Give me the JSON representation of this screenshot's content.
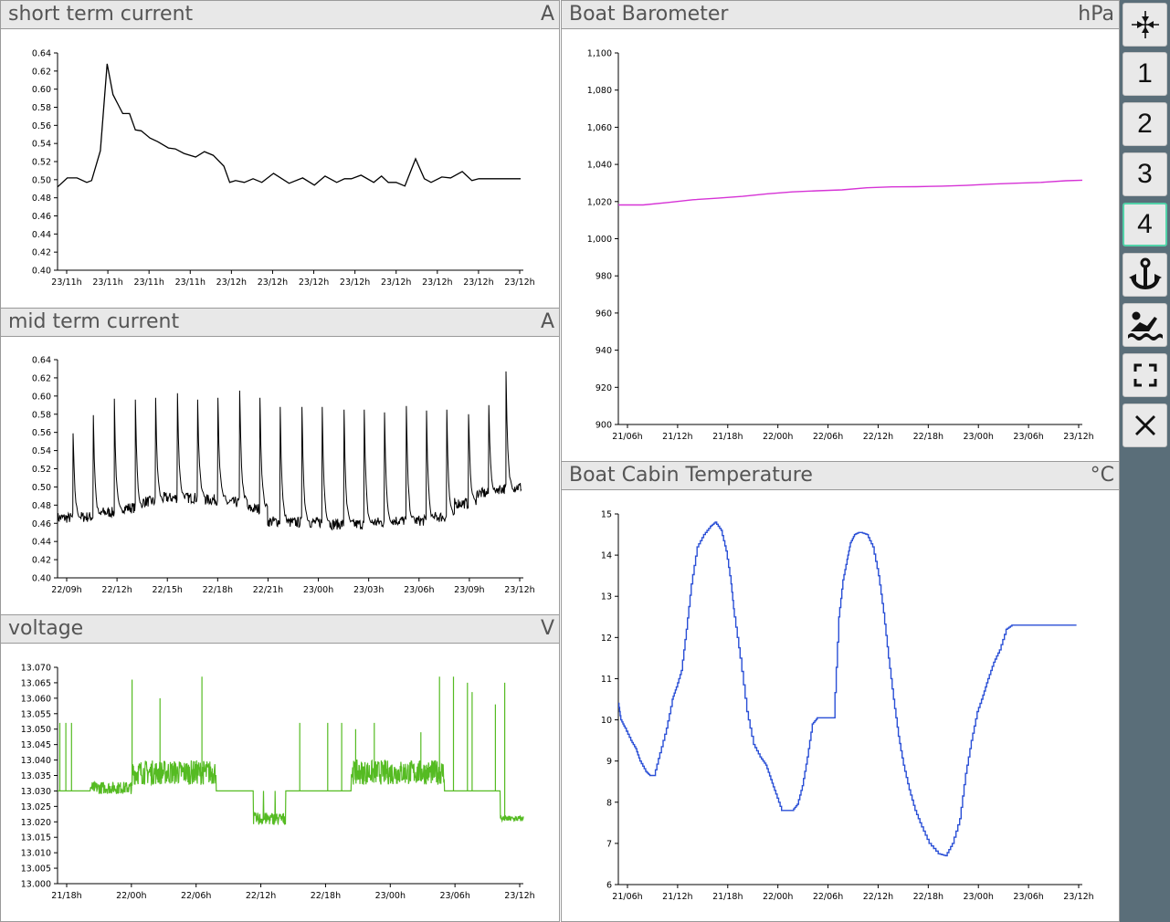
{
  "panels": {
    "short": {
      "title": "short term current",
      "unit": "A"
    },
    "mid": {
      "title": "mid term current",
      "unit": "A"
    },
    "voltage": {
      "title": "voltage",
      "unit": "V"
    },
    "baro": {
      "title": "Boat Barometer",
      "unit": "hPa"
    },
    "temp": {
      "title": "Boat Cabin Temperature",
      "unit": "°C"
    }
  },
  "sidebar": {
    "buttons": [
      "1",
      "2",
      "3",
      "4"
    ],
    "active_button": "4",
    "icons": [
      "compress-icon",
      "anchor-icon",
      "swimmer-icon",
      "fullscreen-icon",
      "close-icon"
    ]
  },
  "colors": {
    "short": "#000000",
    "mid": "#000000",
    "voltage": "#55bb22",
    "baro": "#d633d6",
    "temp": "#2a4fd6"
  },
  "chart_data": [
    {
      "id": "short",
      "type": "line",
      "yticks": [
        "0.64",
        "0.62",
        "0.60",
        "0.58",
        "0.56",
        "0.54",
        "0.52",
        "0.50",
        "0.48",
        "0.46",
        "0.44",
        "0.42",
        "0.40"
      ],
      "ylim": [
        0.4,
        0.64
      ],
      "xticks": [
        "23/11h",
        "23/11h",
        "23/11h",
        "23/11h",
        "23/12h",
        "23/12h",
        "23/12h",
        "23/12h",
        "23/12h",
        "23/12h",
        "23/12h",
        "23/12h"
      ],
      "x": [
        0,
        1.0,
        2.0,
        3.0,
        3.5,
        4.4,
        5.1,
        5.7,
        6.7,
        7.4,
        8.0,
        8.6,
        9.5,
        10.3,
        11.4,
        12.1,
        13.0,
        14.2,
        15.1,
        16.0,
        17.1,
        17.7,
        18.3,
        19.2,
        20.1,
        21.0,
        22.2,
        23.8,
        25.2,
        26.4,
        27.5,
        28.7,
        29.5,
        30.2,
        31.2,
        32.5,
        33.3,
        34.0,
        34.8,
        35.7,
        36.8,
        37.7,
        38.4,
        39.5,
        40.4,
        41.6,
        42.6,
        43.3,
        44.4,
        45.2,
        46.2,
        47.6
      ],
      "y": [
        0.492,
        0.502,
        0.502,
        0.497,
        0.499,
        0.532,
        0.628,
        0.594,
        0.573,
        0.573,
        0.555,
        0.554,
        0.546,
        0.542,
        0.535,
        0.534,
        0.529,
        0.525,
        0.531,
        0.527,
        0.515,
        0.497,
        0.499,
        0.497,
        0.501,
        0.497,
        0.507,
        0.496,
        0.502,
        0.494,
        0.504,
        0.497,
        0.501,
        0.501,
        0.505,
        0.497,
        0.504,
        0.497,
        0.497,
        0.493,
        0.523,
        0.501,
        0.497,
        0.503,
        0.502,
        0.509,
        0.499,
        0.501,
        0.501,
        0.501,
        0.501,
        0.501
      ]
    },
    {
      "id": "mid",
      "type": "line",
      "yticks": [
        "0.64",
        "0.62",
        "0.60",
        "0.58",
        "0.56",
        "0.54",
        "0.52",
        "0.50",
        "0.48",
        "0.46",
        "0.44",
        "0.42",
        "0.40"
      ],
      "ylim": [
        0.4,
        0.64
      ],
      "xticks": [
        "22/09h",
        "22/12h",
        "22/15h",
        "22/18h",
        "22/21h",
        "23/00h",
        "23/03h",
        "23/06h",
        "23/09h",
        "23/12h"
      ],
      "spikes": [
        {
          "t": 1.0,
          "peak": 0.559,
          "base": 0.466
        },
        {
          "t": 2.3,
          "peak": 0.579,
          "base": 0.467
        },
        {
          "t": 3.65,
          "peak": 0.597,
          "base": 0.472
        },
        {
          "t": 5.0,
          "peak": 0.596,
          "base": 0.477
        },
        {
          "t": 6.3,
          "peak": 0.598,
          "base": 0.484
        },
        {
          "t": 7.7,
          "peak": 0.603,
          "base": 0.488
        },
        {
          "t": 9.0,
          "peak": 0.596,
          "base": 0.488
        },
        {
          "t": 10.3,
          "peak": 0.598,
          "base": 0.486
        },
        {
          "t": 11.7,
          "peak": 0.606,
          "base": 0.483
        },
        {
          "t": 13.0,
          "peak": 0.598,
          "base": 0.476
        },
        {
          "t": 14.3,
          "peak": 0.588,
          "base": 0.462
        },
        {
          "t": 15.7,
          "peak": 0.588,
          "base": 0.461
        },
        {
          "t": 17.0,
          "peak": 0.588,
          "base": 0.461
        },
        {
          "t": 18.4,
          "peak": 0.585,
          "base": 0.459
        },
        {
          "t": 19.7,
          "peak": 0.585,
          "base": 0.459
        },
        {
          "t": 21.0,
          "peak": 0.582,
          "base": 0.461
        },
        {
          "t": 22.4,
          "peak": 0.589,
          "base": 0.463
        },
        {
          "t": 23.7,
          "peak": 0.584,
          "base": 0.463
        },
        {
          "t": 25.0,
          "peak": 0.585,
          "base": 0.467
        },
        {
          "t": 26.4,
          "peak": 0.58,
          "base": 0.482
        },
        {
          "t": 27.7,
          "peak": 0.59,
          "base": 0.493
        },
        {
          "t": 28.8,
          "peak": 0.627,
          "base": 0.498
        }
      ]
    },
    {
      "id": "voltage",
      "type": "line",
      "yticks": [
        "13.070",
        "13.065",
        "13.060",
        "13.055",
        "13.050",
        "13.045",
        "13.040",
        "13.035",
        "13.030",
        "13.025",
        "13.020",
        "13.015",
        "13.010",
        "13.005",
        "13.000"
      ],
      "ylim": [
        13.0,
        13.07
      ],
      "xticks": [
        "21/18h",
        "22/00h",
        "22/06h",
        "22/12h",
        "22/18h",
        "23/00h",
        "23/06h",
        "23/12h"
      ]
    },
    {
      "id": "baro",
      "type": "line",
      "yticks": [
        "1,100",
        "1,080",
        "1,060",
        "1,040",
        "1,020",
        "1,000",
        "980",
        "960",
        "940",
        "920",
        "900"
      ],
      "ylim": [
        900,
        1100
      ],
      "xticks": [
        "21/06h",
        "21/12h",
        "21/18h",
        "22/00h",
        "22/06h",
        "22/12h",
        "22/18h",
        "23/00h",
        "23/06h",
        "23/12h"
      ],
      "x": [
        0,
        3,
        6,
        9,
        12,
        15,
        18,
        21,
        24,
        27,
        30,
        33,
        36,
        39,
        42,
        45,
        48,
        51,
        54,
        56
      ],
      "y": [
        1018.2,
        1018.2,
        1019.5,
        1021,
        1021.8,
        1022.8,
        1024.2,
        1025.2,
        1025.8,
        1026.3,
        1027.4,
        1027.9,
        1028.0,
        1028.3,
        1028.7,
        1029.4,
        1029.9,
        1030.3,
        1031.2,
        1031.5
      ]
    },
    {
      "id": "temp",
      "type": "line",
      "yticks": [
        "15",
        "14",
        "13",
        "12",
        "11",
        "10",
        "9",
        "8",
        "7",
        "6"
      ],
      "ylim": [
        6,
        15
      ],
      "xticks": [
        "21/06h",
        "21/12h",
        "21/18h",
        "22/00h",
        "22/06h",
        "22/12h",
        "22/18h",
        "23/00h",
        "23/06h",
        "23/12h"
      ],
      "x": [
        0,
        0.3,
        0.8,
        1.5,
        2.1,
        2.6,
        3.3,
        3.8,
        4.3,
        5.0,
        5.8,
        6.5,
        7.0,
        7.6,
        8.2,
        8.8,
        9.5,
        10.3,
        11.1,
        11.7,
        12.4,
        13.0,
        13.6,
        14.0,
        14.7,
        15.5,
        16.3,
        17.1,
        17.8,
        18.4,
        19.0,
        19.7,
        20.3,
        21.0,
        21.6,
        22.2,
        22.8,
        23.4,
        24.0,
        24.4,
        25.2,
        26.0,
        26.6,
        27.1,
        27.6,
        28.0,
        28.5,
        29.0,
        29.3,
        30.0,
        30.7,
        31.4,
        32.0,
        32.6,
        33.2,
        33.8,
        34.4,
        35.1,
        35.8,
        36.6,
        37.5,
        38.6,
        39.5,
        40.3,
        41.2,
        41.9,
        42.6,
        43.3,
        44.0,
        44.6,
        45.3,
        46.0,
        46.8,
        47.5,
        48.4,
        49.2,
        50.0,
        50.8,
        51.6,
        52.5,
        53.2,
        54.0,
        54.7,
        55.3,
        56.0
      ],
      "y": [
        10.4,
        10.0,
        9.8,
        9.5,
        9.3,
        9.0,
        8.75,
        8.65,
        8.65,
        9.2,
        9.8,
        10.5,
        10.8,
        11.2,
        12.2,
        13.3,
        14.2,
        14.5,
        14.7,
        14.8,
        14.6,
        14.1,
        13.3,
        12.5,
        11.5,
        10.2,
        9.4,
        9.1,
        8.9,
        8.55,
        8.2,
        7.8,
        7.8,
        7.8,
        7.95,
        8.4,
        9.1,
        9.9,
        10.05,
        10.05,
        10.05,
        10.05,
        12.5,
        13.4,
        13.9,
        14.3,
        14.5,
        14.55,
        14.55,
        14.5,
        14.2,
        13.5,
        12.6,
        11.5,
        10.5,
        9.6,
        8.9,
        8.3,
        7.8,
        7.4,
        7.0,
        6.75,
        6.7,
        7.0,
        7.6,
        8.7,
        9.5,
        10.2,
        10.6,
        11.0,
        11.4,
        11.7,
        12.2,
        12.3,
        12.3,
        12.3,
        12.3,
        12.3,
        12.3,
        12.3,
        12.3,
        12.3,
        12.3,
        12.3,
        12.3
      ]
    }
  ]
}
